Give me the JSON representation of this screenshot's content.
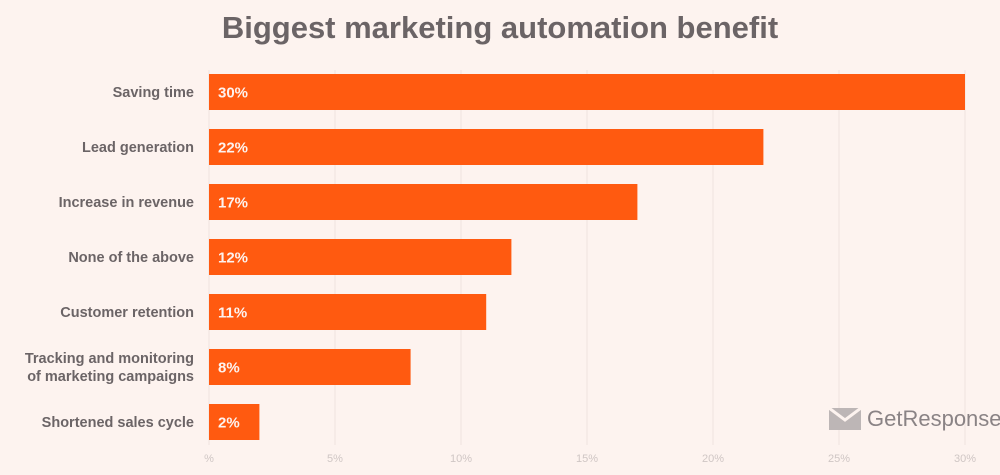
{
  "chart_data": {
    "type": "bar",
    "orientation": "horizontal",
    "title": "Biggest marketing automation benefit",
    "categories": [
      "Saving time",
      "Lead generation",
      "Increase in revenue",
      "None of the above",
      "Customer retention",
      "Tracking and monitoring|of marketing campaigns",
      "Shortened sales cycle"
    ],
    "values": [
      30,
      22,
      17,
      12,
      11,
      8,
      2
    ],
    "value_labels": [
      "30%",
      "22%",
      "17%",
      "12%",
      "11%",
      "8%",
      "2%"
    ],
    "xlim": [
      0,
      30
    ],
    "xticks": [
      0,
      5,
      10,
      15,
      20,
      25,
      30
    ],
    "xtick_labels": [
      "%",
      "5%",
      "10%",
      "15%",
      "20%",
      "25%",
      "30%"
    ],
    "grid": true,
    "bar_color": "#ff5a10",
    "background": "#fdf3ef"
  },
  "brand": {
    "name": "GetResponse"
  }
}
